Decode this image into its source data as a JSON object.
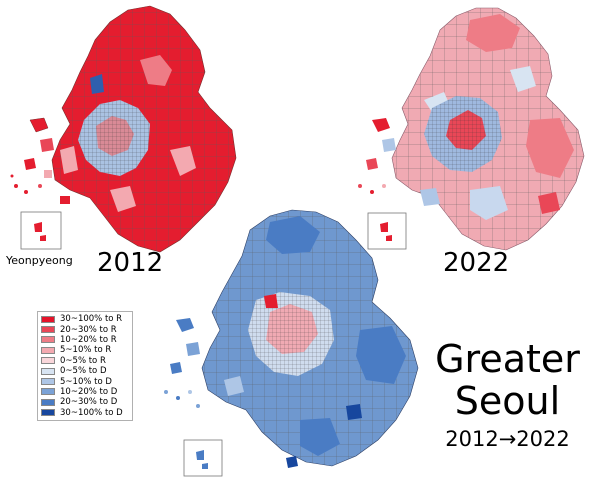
{
  "maps": [
    {
      "year": "2012",
      "inset_label": "Yeonpyeong",
      "dominant": "R"
    },
    {
      "year": "2022",
      "dominant": "mixed"
    },
    {
      "year": "",
      "dominant": "D"
    }
  ],
  "title": {
    "line1": "Greater",
    "line2": "Seoul",
    "line3": "2012→2022"
  },
  "legend": [
    {
      "label": "30~100% to R",
      "color": "#e5132a"
    },
    {
      "label": "20~30% to R",
      "color": "#e94757"
    },
    {
      "label": "10~20% to R",
      "color": "#ee7c86"
    },
    {
      "label": "5~10% to R",
      "color": "#f3a9b0"
    },
    {
      "label": "0~5% to R",
      "color": "#f9d6da"
    },
    {
      "label": "0~5% to D",
      "color": "#d8e4f2"
    },
    {
      "label": "5~10% to D",
      "color": "#aec6e6"
    },
    {
      "label": "10~20% to D",
      "color": "#7ba2d6"
    },
    {
      "label": "20~30% to D",
      "color": "#4a7cc4"
    },
    {
      "label": "30~100% to D",
      "color": "#17479e"
    }
  ]
}
